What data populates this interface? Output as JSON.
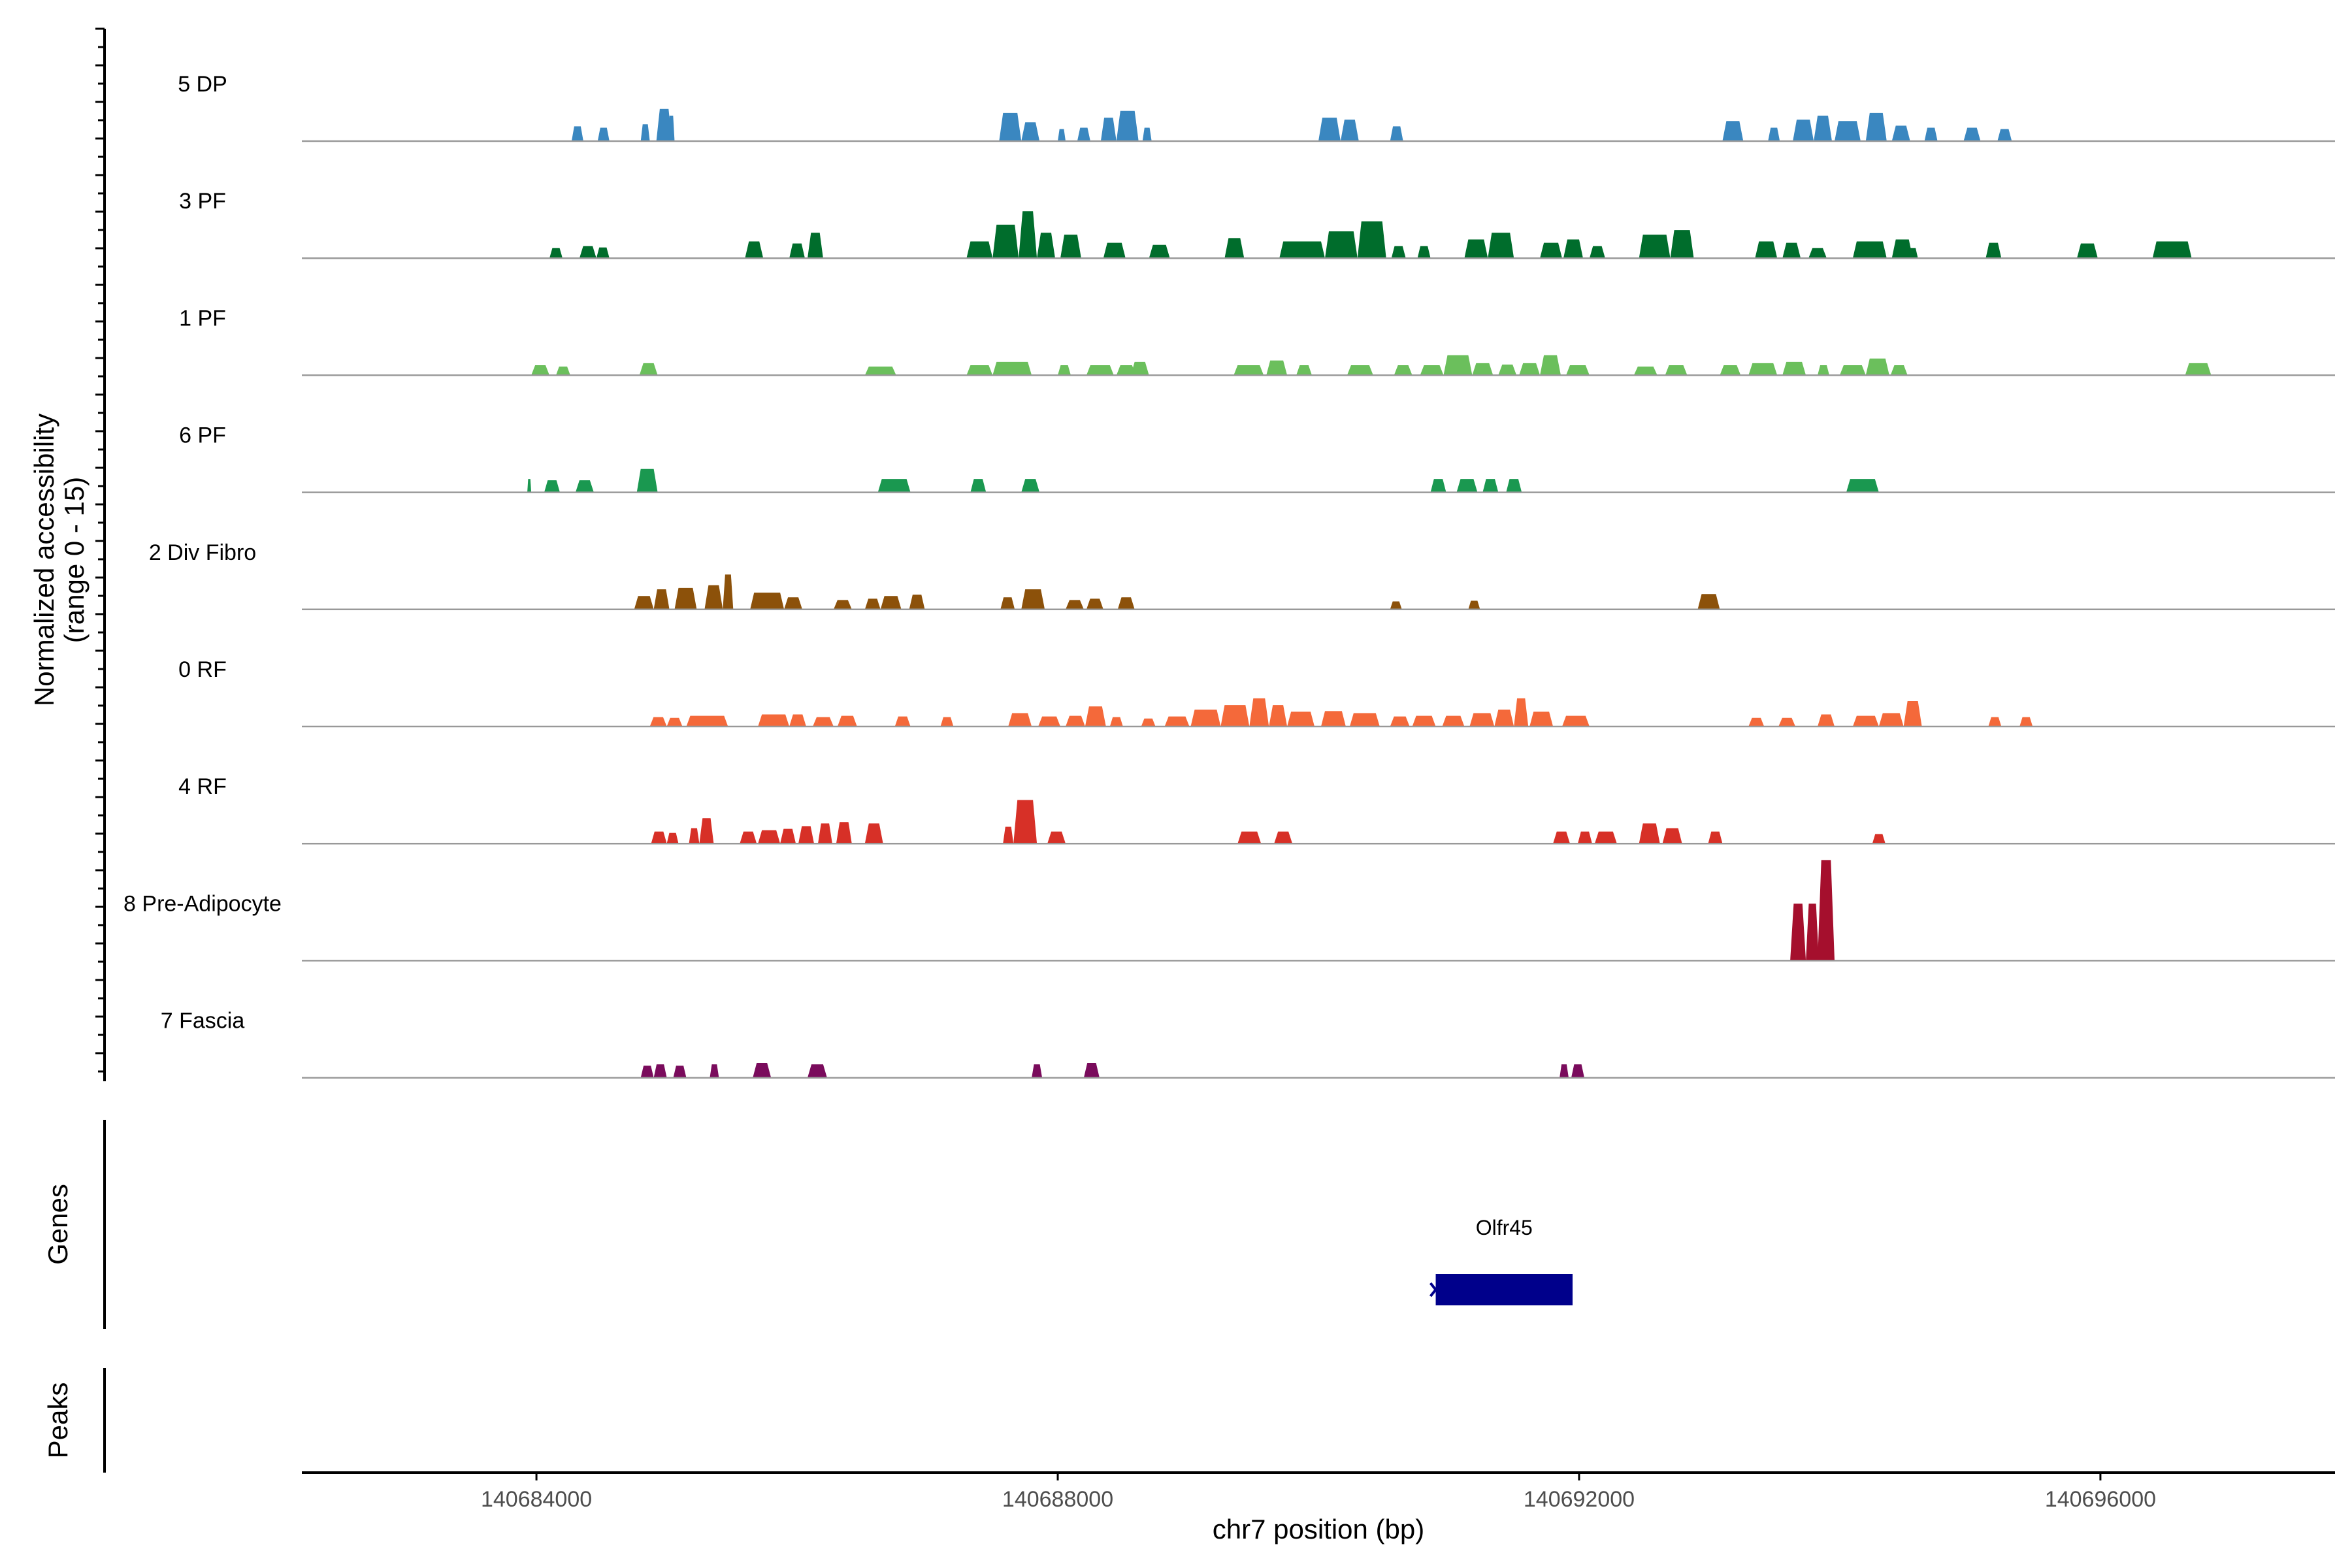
{
  "chart_data": {
    "type": "area",
    "ylabel_line1": "Normalized accessibility",
    "ylabel_line2": "(range 0 - 15)",
    "xlabel": "chr7 position (bp)",
    "xlim": [
      140682200,
      140697800
    ],
    "ylim": [
      0,
      15
    ],
    "x_ticks": [
      {
        "value": 140684000,
        "label": "140684000"
      },
      {
        "value": 140688000,
        "label": "140688000"
      },
      {
        "value": 140692000,
        "label": "140692000"
      },
      {
        "value": 140696000,
        "label": "140696000"
      }
    ],
    "genes_title": "Genes",
    "peaks_title": "Peaks",
    "genes": [
      {
        "name": "Olfr45",
        "start": 140690900,
        "end": 140691950,
        "strand": "-",
        "color": "#00008B"
      }
    ],
    "series": [
      {
        "name": "5 DP",
        "color": "#3A87C0",
        "peaks": [
          [
            140684270,
            140684360,
            2.2
          ],
          [
            140684470,
            140684560,
            2.0
          ],
          [
            140684800,
            140684870,
            2.5
          ],
          [
            140684920,
            140685040,
            4.8
          ],
          [
            140685010,
            140685060,
            3.8
          ],
          [
            140687550,
            140687720,
            4.2
          ],
          [
            140687720,
            140687860,
            2.8
          ],
          [
            140688000,
            140688060,
            1.8
          ],
          [
            140688150,
            140688250,
            2.0
          ],
          [
            140688330,
            140688450,
            3.5
          ],
          [
            140688450,
            140688620,
            4.5
          ],
          [
            140688650,
            140688720,
            2.0
          ],
          [
            140690000,
            140690170,
            3.5
          ],
          [
            140690170,
            140690310,
            3.2
          ],
          [
            140690550,
            140690650,
            2.2
          ],
          [
            140693100,
            140693260,
            3.0
          ],
          [
            140693450,
            140693540,
            2.0
          ],
          [
            140693640,
            140693800,
            3.2
          ],
          [
            140693800,
            140693940,
            3.8
          ],
          [
            140693960,
            140694160,
            3.0
          ],
          [
            140694200,
            140694360,
            4.2
          ],
          [
            140694400,
            140694540,
            2.3
          ],
          [
            140694650,
            140694750,
            2.0
          ],
          [
            140694950,
            140695080,
            2.0
          ],
          [
            140695210,
            140695320,
            1.8
          ]
        ]
      },
      {
        "name": "3 PF",
        "color": "#006D2C",
        "peaks": [
          [
            140684100,
            140684200,
            1.5
          ],
          [
            140684330,
            140684460,
            1.8
          ],
          [
            140684460,
            140684560,
            1.6
          ],
          [
            140685600,
            140685740,
            2.5
          ],
          [
            140685940,
            140686060,
            2.2
          ],
          [
            140686080,
            140686200,
            3.8
          ],
          [
            140687300,
            140687500,
            2.5
          ],
          [
            140687500,
            140687700,
            5.0
          ],
          [
            140687700,
            140687840,
            7.0
          ],
          [
            140687840,
            140687980,
            3.8
          ],
          [
            140688020,
            140688180,
            3.5
          ],
          [
            140688350,
            140688520,
            2.3
          ],
          [
            140688700,
            140688860,
            2.0
          ],
          [
            140689280,
            140689430,
            3.0
          ],
          [
            140689700,
            140690050,
            2.5
          ],
          [
            140690050,
            140690300,
            4.0
          ],
          [
            140690300,
            140690520,
            5.5
          ],
          [
            140690560,
            140690670,
            1.8
          ],
          [
            140690760,
            140690860,
            1.8
          ],
          [
            140691120,
            140691300,
            2.8
          ],
          [
            140691300,
            140691500,
            3.8
          ],
          [
            140691700,
            140691870,
            2.3
          ],
          [
            140691880,
            140692030,
            2.8
          ],
          [
            140692080,
            140692200,
            1.8
          ],
          [
            140692460,
            140692700,
            3.5
          ],
          [
            140692700,
            140692880,
            4.2
          ],
          [
            140693350,
            140693520,
            2.5
          ],
          [
            140693560,
            140693700,
            2.3
          ],
          [
            140693760,
            140693900,
            1.5
          ],
          [
            140694100,
            140694360,
            2.5
          ],
          [
            140694400,
            140694560,
            2.8
          ],
          [
            140694520,
            140694600,
            1.5
          ],
          [
            140695120,
            140695240,
            2.3
          ],
          [
            140695820,
            140695980,
            2.2
          ],
          [
            140696400,
            140696700,
            2.5
          ]
        ]
      },
      {
        "name": "1 PF",
        "color": "#6BBF5C",
        "peaks": [
          [
            140683960,
            140684100,
            1.5
          ],
          [
            140684150,
            140684260,
            1.3
          ],
          [
            140684790,
            140684930,
            1.8
          ],
          [
            140686520,
            140686760,
            1.3
          ],
          [
            140687300,
            140687500,
            1.5
          ],
          [
            140687500,
            140687800,
            2.0
          ],
          [
            140688000,
            140688100,
            1.5
          ],
          [
            140688220,
            140688430,
            1.5
          ],
          [
            140688450,
            140688600,
            1.5
          ],
          [
            140688560,
            140688700,
            2.0
          ],
          [
            140689350,
            140689580,
            1.5
          ],
          [
            140689600,
            140689760,
            2.2
          ],
          [
            140689830,
            140689950,
            1.5
          ],
          [
            140690220,
            140690420,
            1.5
          ],
          [
            140690580,
            140690720,
            1.5
          ],
          [
            140690780,
            140690960,
            1.5
          ],
          [
            140690960,
            140691180,
            3.0
          ],
          [
            140691180,
            140691340,
            1.8
          ],
          [
            140691380,
            140691520,
            1.6
          ],
          [
            140691540,
            140691700,
            1.8
          ],
          [
            140691700,
            140691860,
            3.0
          ],
          [
            140691900,
            140692080,
            1.5
          ],
          [
            140692420,
            140692600,
            1.3
          ],
          [
            140692660,
            140692830,
            1.5
          ],
          [
            140693080,
            140693240,
            1.5
          ],
          [
            140693300,
            140693520,
            1.8
          ],
          [
            140693560,
            140693740,
            2.0
          ],
          [
            140693830,
            140693920,
            1.5
          ],
          [
            140694000,
            140694200,
            1.5
          ],
          [
            140694200,
            140694380,
            2.5
          ],
          [
            140694390,
            140694520,
            1.5
          ],
          [
            140696650,
            140696850,
            1.8
          ]
        ]
      },
      {
        "name": "6 PF",
        "color": "#1A9850",
        "peaks": [
          [
            140683930,
            140683960,
            2.0
          ],
          [
            140684060,
            140684180,
            1.8
          ],
          [
            140684300,
            140684440,
            1.8
          ],
          [
            140684770,
            140684930,
            3.5
          ],
          [
            140686620,
            140686870,
            2.0
          ],
          [
            140687330,
            140687450,
            2.0
          ],
          [
            140687720,
            140687860,
            2.0
          ],
          [
            140690860,
            140690980,
            2.0
          ],
          [
            140691060,
            140691220,
            2.0
          ],
          [
            140691260,
            140691380,
            2.0
          ],
          [
            140691440,
            140691560,
            2.0
          ],
          [
            140694050,
            140694300,
            2.0
          ]
        ]
      },
      {
        "name": "2 Div Fibro",
        "color": "#8C510A",
        "peaks": [
          [
            140684750,
            140684900,
            2.0
          ],
          [
            140684900,
            140685020,
            3.0
          ],
          [
            140685060,
            140685230,
            3.2
          ],
          [
            140685290,
            140685430,
            3.6
          ],
          [
            140685430,
            140685510,
            5.2
          ],
          [
            140685640,
            140685900,
            2.5
          ],
          [
            140685900,
            140686040,
            1.8
          ],
          [
            140686280,
            140686420,
            1.4
          ],
          [
            140686520,
            140686640,
            1.6
          ],
          [
            140686640,
            140686800,
            2.0
          ],
          [
            140686860,
            140686980,
            2.2
          ],
          [
            140687560,
            140687670,
            1.8
          ],
          [
            140687720,
            140687900,
            3.0
          ],
          [
            140688060,
            140688200,
            1.4
          ],
          [
            140688220,
            140688350,
            1.6
          ],
          [
            140688460,
            140688590,
            1.8
          ],
          [
            140690550,
            140690640,
            1.2
          ],
          [
            140691150,
            140691240,
            1.3
          ],
          [
            140692910,
            140693080,
            2.3
          ]
        ]
      },
      {
        "name": "0 RF",
        "color": "#F4693A",
        "peaks": [
          [
            140684870,
            140685000,
            1.4
          ],
          [
            140685000,
            140685120,
            1.3
          ],
          [
            140685150,
            140685470,
            1.6
          ],
          [
            140685700,
            140685940,
            1.8
          ],
          [
            140685940,
            140686070,
            1.8
          ],
          [
            140686120,
            140686280,
            1.4
          ],
          [
            140686310,
            140686460,
            1.6
          ],
          [
            140686750,
            140686870,
            1.5
          ],
          [
            140687100,
            140687200,
            1.4
          ],
          [
            140687620,
            140687800,
            2.0
          ],
          [
            140687850,
            140688020,
            1.5
          ],
          [
            140688060,
            140688210,
            1.6
          ],
          [
            140688210,
            140688370,
            3.0
          ],
          [
            140688400,
            140688500,
            1.4
          ],
          [
            140688640,
            140688750,
            1.2
          ],
          [
            140688820,
            140689010,
            1.5
          ],
          [
            140689020,
            140689250,
            2.5
          ],
          [
            140689250,
            140689470,
            3.2
          ],
          [
            140689470,
            140689620,
            4.2
          ],
          [
            140689620,
            140689760,
            3.2
          ],
          [
            140689760,
            140689970,
            2.2
          ],
          [
            140690020,
            140690210,
            2.3
          ],
          [
            140690240,
            140690470,
            2.0
          ],
          [
            140690550,
            140690700,
            1.5
          ],
          [
            140690720,
            140690900,
            1.6
          ],
          [
            140690950,
            140691120,
            1.6
          ],
          [
            140691160,
            140691350,
            2.0
          ],
          [
            140691350,
            140691500,
            2.5
          ],
          [
            140691500,
            140691610,
            4.2
          ],
          [
            140691620,
            140691800,
            2.2
          ],
          [
            140691870,
            140692080,
            1.6
          ],
          [
            140693300,
            140693420,
            1.3
          ],
          [
            140693530,
            140693660,
            1.3
          ],
          [
            140693830,
            140693960,
            1.8
          ],
          [
            140694100,
            140694300,
            1.6
          ],
          [
            140694300,
            140694490,
            2.0
          ],
          [
            140694490,
            140694630,
            3.8
          ],
          [
            140695140,
            140695240,
            1.4
          ],
          [
            140695380,
            140695480,
            1.4
          ]
        ]
      },
      {
        "name": "4 RF",
        "color": "#D73027",
        "peaks": [
          [
            140684880,
            140685000,
            1.8
          ],
          [
            140685000,
            140685090,
            1.6
          ],
          [
            140685170,
            140685250,
            2.3
          ],
          [
            140685250,
            140685360,
            3.8
          ],
          [
            140685560,
            140685690,
            1.8
          ],
          [
            140685700,
            140685870,
            2.0
          ],
          [
            140685870,
            140685990,
            2.2
          ],
          [
            140686010,
            140686130,
            2.6
          ],
          [
            140686160,
            140686270,
            3.0
          ],
          [
            140686300,
            140686420,
            3.2
          ],
          [
            140686520,
            140686660,
            3.0
          ],
          [
            140687580,
            140687660,
            2.5
          ],
          [
            140687660,
            140687840,
            6.5
          ],
          [
            140687920,
            140688060,
            1.8
          ],
          [
            140689380,
            140689560,
            1.8
          ],
          [
            140689660,
            140689800,
            1.8
          ],
          [
            140691800,
            140691930,
            1.8
          ],
          [
            140691990,
            140692100,
            1.8
          ],
          [
            140692120,
            140692290,
            1.8
          ],
          [
            140692460,
            140692620,
            3.0
          ],
          [
            140692640,
            140692790,
            2.3
          ],
          [
            140692990,
            140693100,
            1.8
          ],
          [
            140694250,
            140694350,
            1.4
          ]
        ]
      },
      {
        "name": "8 Pre-Adipocyte",
        "color": "#A50F2D",
        "peaks": [
          [
            140693620,
            140693740,
            8.5
          ],
          [
            140693740,
            140693840,
            8.5
          ],
          [
            140693830,
            140693960,
            15.0
          ]
        ]
      },
      {
        "name": "7 Fascia",
        "color": "#7A0B5C",
        "peaks": [
          [
            140684800,
            140684900,
            1.8
          ],
          [
            140684900,
            140685000,
            2.0
          ],
          [
            140685050,
            140685150,
            1.8
          ],
          [
            140685330,
            140685400,
            2.0
          ],
          [
            140685660,
            140685800,
            2.2
          ],
          [
            140686080,
            140686230,
            2.0
          ],
          [
            140687800,
            140687880,
            2.0
          ],
          [
            140688200,
            140688320,
            2.2
          ],
          [
            140691850,
            140691920,
            2.0
          ],
          [
            140691940,
            140692040,
            2.0
          ]
        ]
      }
    ]
  }
}
